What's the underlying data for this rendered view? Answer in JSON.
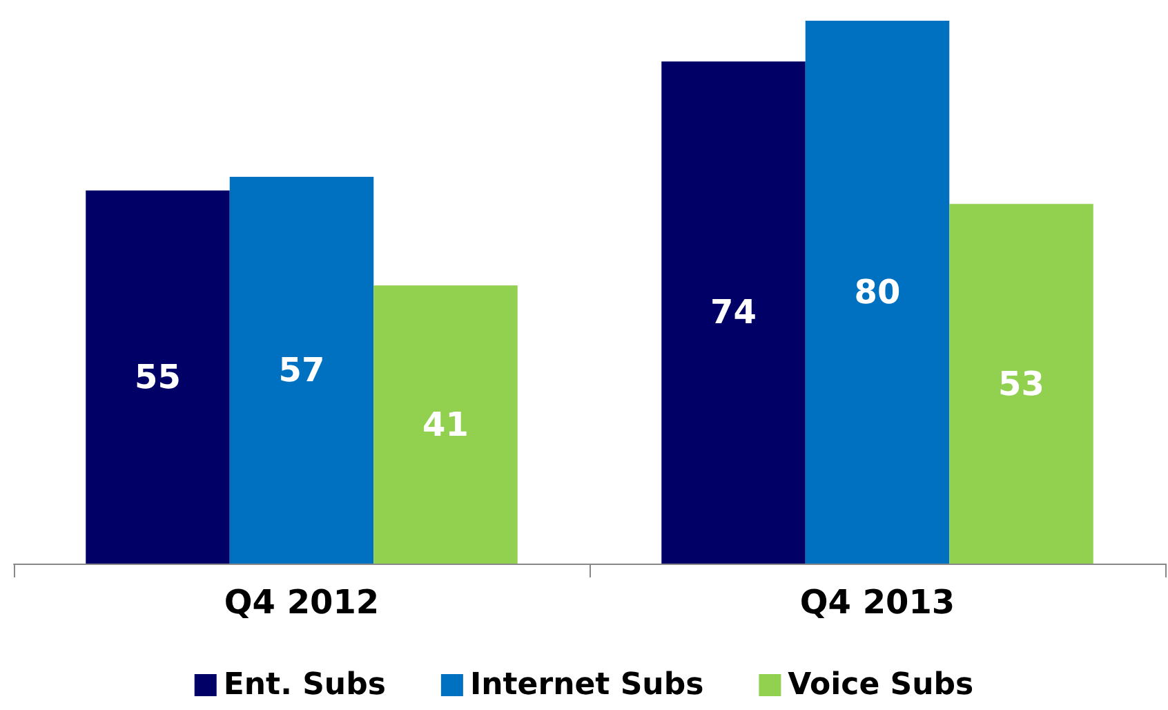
{
  "chart_data": {
    "type": "bar",
    "categories": [
      "Q4 2012",
      "Q4 2013"
    ],
    "series": [
      {
        "name": "Ent. Subs",
        "color": "#000066",
        "values": [
          55,
          74
        ]
      },
      {
        "name": "Internet Subs",
        "color": "#0070c0",
        "values": [
          57,
          80
        ]
      },
      {
        "name": "Voice Subs",
        "color": "#92d050",
        "values": [
          41,
          53
        ]
      }
    ],
    "data_labels": true,
    "legend": "bottom",
    "grid": false
  }
}
